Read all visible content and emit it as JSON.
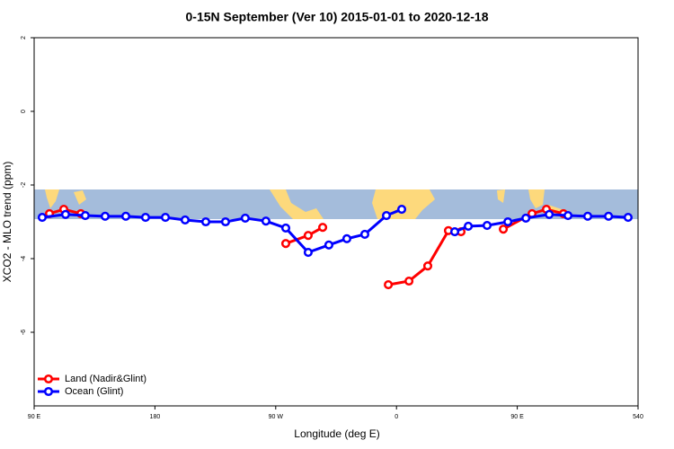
{
  "chart_data": {
    "type": "line",
    "title": "0-15N September (Ver 10)   2015-01-01 to 2020-12-18",
    "xlabel": "Longitude (deg E)",
    "ylabel": "XCO2 - MLO trend (ppm)",
    "xlim": [
      90,
      540
    ],
    "xticks": [
      {
        "value": 90,
        "label": "90 E"
      },
      180,
      {
        "value": 270,
        "label": "90 W"
      },
      {
        "value": 360,
        "label": "0"
      },
      {
        "value": 450,
        "label": "90 E"
      },
      540
    ],
    "ylim": [
      -8,
      2
    ],
    "yticks": [
      -6,
      -4,
      -2,
      0,
      2
    ],
    "legend": "bottom-left",
    "series": [
      {
        "name": "Land (Nadir&Glint)",
        "color": "#ff0000",
        "x": [
          101.4,
          112.1,
          124.8,
          null,
          277.5,
          294.2,
          305,
          null,
          353.9,
          369.3,
          383.3,
          398.7,
          408.1,
          null,
          439.6,
          461,
          471.7,
          484.4
        ],
        "values": [
          -2.78,
          -2.66,
          -2.78,
          null,
          -3.59,
          -3.37,
          -3.15,
          null,
          -4.71,
          -4.61,
          -4.2,
          -3.24,
          -3.27,
          null,
          -3.2,
          -2.78,
          -2.66,
          -2.78
        ]
      },
      {
        "name": "Ocean (Glint)",
        "color": "#0000ff",
        "x": [
          96,
          113.4,
          128.1,
          142.9,
          158.3,
          173,
          187.8,
          202.5,
          217.9,
          232.6,
          247.3,
          262.7,
          277.5,
          294.2,
          309.6,
          323,
          336.4,
          352.5,
          363.9,
          null,
          403.4,
          413.5,
          427.5,
          443,
          456.4,
          473.8,
          487.8,
          502.5,
          518,
          532.6
        ],
        "values": [
          -2.88,
          -2.8,
          -2.83,
          -2.85,
          -2.85,
          -2.88,
          -2.88,
          -2.95,
          -3,
          -3,
          -2.9,
          -2.98,
          -3.17,
          -3.83,
          -3.63,
          -3.46,
          -3.34,
          -2.83,
          -2.66,
          null,
          -3.27,
          -3.12,
          -3.1,
          -3,
          -2.9,
          -2.8,
          -2.83,
          -2.85,
          -2.85,
          -2.88
        ]
      }
    ]
  }
}
